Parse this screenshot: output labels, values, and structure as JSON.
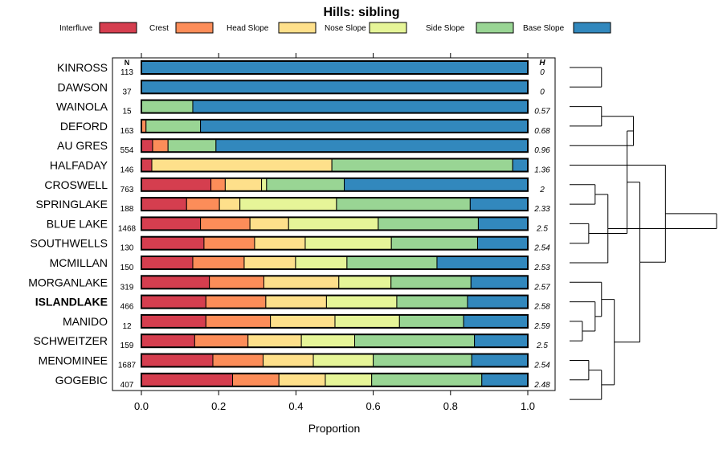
{
  "chart_data": {
    "type": "bar",
    "stacked": true,
    "orientation": "horizontal",
    "title": "Hills: sibling",
    "xlabel": "Proportion",
    "xlim": [
      0,
      1
    ],
    "xticks": [
      "0.0",
      "0.2",
      "0.4",
      "0.6",
      "0.8",
      "1.0"
    ],
    "n_header": "N",
    "h_header": "H",
    "legend_position": "top",
    "series": [
      {
        "name": "Interfluve",
        "color": "#d53e4f"
      },
      {
        "name": "Crest",
        "color": "#fc8d59"
      },
      {
        "name": "Head Slope",
        "color": "#fee08b"
      },
      {
        "name": "Nose Slope",
        "color": "#e6f598"
      },
      {
        "name": "Side Slope",
        "color": "#99d594"
      },
      {
        "name": "Base Slope",
        "color": "#3288bd"
      }
    ],
    "rows": [
      {
        "label": "KINROSS",
        "n": "113",
        "h": "0",
        "bold": false,
        "values": [
          0,
          0,
          0,
          0,
          0,
          1
        ]
      },
      {
        "label": "DAWSON",
        "n": "37",
        "h": "0",
        "bold": false,
        "values": [
          0,
          0,
          0,
          0,
          0,
          1
        ]
      },
      {
        "label": "WAINOLA",
        "n": "15",
        "h": "0.57",
        "bold": false,
        "values": [
          0,
          0,
          0,
          0,
          0.133,
          0.867
        ]
      },
      {
        "label": "DEFORD",
        "n": "163",
        "h": "0.68",
        "bold": false,
        "values": [
          0,
          0.012,
          0,
          0,
          0.141,
          0.847
        ]
      },
      {
        "label": "AU GRES",
        "n": "554",
        "h": "0.96",
        "bold": false,
        "values": [
          0.029,
          0.04,
          0,
          0,
          0.124,
          0.807
        ]
      },
      {
        "label": "HALFADAY",
        "n": "146",
        "h": "1.36",
        "bold": false,
        "values": [
          0.027,
          0,
          0.466,
          0,
          0.468,
          0.039
        ]
      },
      {
        "label": "CROSWELL",
        "n": "763",
        "h": "2",
        "bold": false,
        "values": [
          0.18,
          0.037,
          0.094,
          0.013,
          0.201,
          0.475
        ]
      },
      {
        "label": "SPRINGLAKE",
        "n": "188",
        "h": "2.33",
        "bold": false,
        "values": [
          0.117,
          0.085,
          0.053,
          0.25,
          0.346,
          0.149
        ]
      },
      {
        "label": "BLUE LAKE",
        "n": "1468",
        "h": "2.5",
        "bold": false,
        "values": [
          0.153,
          0.128,
          0.1,
          0.232,
          0.259,
          0.128
        ]
      },
      {
        "label": "SOUTHWELLS",
        "n": "130",
        "h": "2.54",
        "bold": false,
        "values": [
          0.162,
          0.131,
          0.131,
          0.223,
          0.223,
          0.13
        ]
      },
      {
        "label": "MCMILLAN",
        "n": "150",
        "h": "2.53",
        "bold": false,
        "values": [
          0.133,
          0.133,
          0.133,
          0.133,
          0.233,
          0.235
        ]
      },
      {
        "label": "MORGANLAKE",
        "n": "319",
        "h": "2.57",
        "bold": false,
        "values": [
          0.176,
          0.141,
          0.194,
          0.135,
          0.207,
          0.147
        ]
      },
      {
        "label": "ISLANDLAKE",
        "n": "466",
        "h": "2.58",
        "bold": true,
        "values": [
          0.167,
          0.155,
          0.157,
          0.182,
          0.183,
          0.156
        ]
      },
      {
        "label": "MANIDO",
        "n": "12",
        "h": "2.59",
        "bold": false,
        "values": [
          0.167,
          0.167,
          0.167,
          0.167,
          0.166,
          0.166
        ]
      },
      {
        "label": "SCHWEITZER",
        "n": "159",
        "h": "2.5",
        "bold": false,
        "values": [
          0.138,
          0.138,
          0.138,
          0.138,
          0.31,
          0.138
        ]
      },
      {
        "label": "MENOMINEE",
        "n": "1687",
        "h": "2.54",
        "bold": false,
        "values": [
          0.185,
          0.13,
          0.13,
          0.155,
          0.255,
          0.145
        ]
      },
      {
        "label": "GOGEBIC",
        "n": "407",
        "h": "2.48",
        "bold": false,
        "values": [
          0.236,
          0.12,
          0.12,
          0.12,
          0.285,
          0.119
        ]
      }
    ],
    "dendrogram": {
      "type": "hierarchical_clustering",
      "merges": [
        [
          -1,
          -2,
          0.5
        ],
        [
          -3,
          -4,
          0.5
        ],
        [
          2,
          -5,
          1.0
        ],
        [
          -7,
          -8,
          0.4
        ],
        [
          -9,
          -10,
          0.3
        ],
        [
          4,
          -11,
          0.6
        ],
        [
          3,
          5,
          0.9
        ],
        [
          -14,
          -15,
          0.2
        ],
        [
          -13,
          8,
          0.4
        ],
        [
          -12,
          9,
          0.5
        ],
        [
          -16,
          -17,
          0.3
        ],
        [
          -18,
          11,
          0.5
        ],
        [
          10,
          12,
          0.7
        ],
        [
          7,
          13,
          1.1
        ],
        [
          -6,
          14,
          1.5
        ],
        [
          6,
          15,
          2.3
        ]
      ]
    }
  }
}
